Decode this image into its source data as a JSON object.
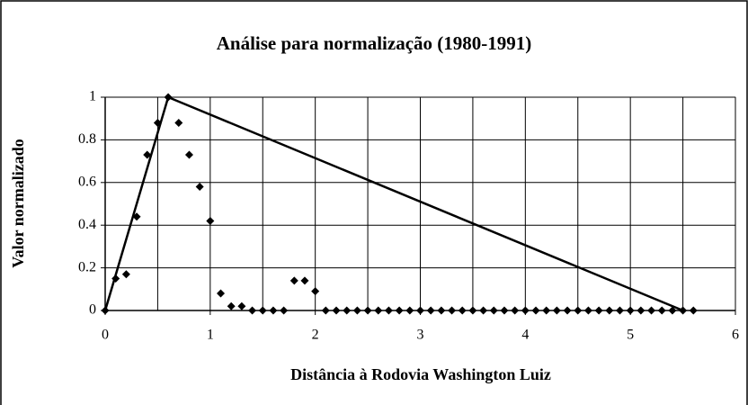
{
  "chart_data": {
    "type": "scatter",
    "title": "Análise para normalização (1980-1991)",
    "x_label": "Distância à Rodovia Washington Luiz",
    "y_label": "Valor normalizado",
    "xlim": [
      0,
      6
    ],
    "xticks": [
      0,
      1,
      2,
      3,
      4,
      5,
      6
    ],
    "ylim": [
      0,
      1
    ],
    "yticks": [
      0,
      0.2,
      0.4,
      0.6,
      0.8,
      1
    ],
    "grid": true,
    "series": [
      {
        "mode": "markers",
        "marker": "diamond",
        "color": "#000000",
        "x": [
          0,
          0.1,
          0.2,
          0.3,
          0.4,
          0.5,
          0.6,
          0.7,
          0.8,
          0.9,
          1.0,
          1.1,
          1.2,
          1.3,
          1.4,
          1.5,
          1.6,
          1.7,
          1.8,
          1.9,
          2.0,
          2.1,
          2.2,
          2.3,
          2.4,
          2.5,
          2.6,
          2.7,
          2.8,
          2.9,
          3.0,
          3.1,
          3.2,
          3.3,
          3.4,
          3.5,
          3.6,
          3.7,
          3.8,
          3.9,
          4.0,
          4.1,
          4.2,
          4.3,
          4.4,
          4.5,
          4.6,
          4.7,
          4.8,
          4.9,
          5.0,
          5.1,
          5.2,
          5.3,
          5.4,
          5.5,
          5.6
        ],
        "values": [
          0,
          0.15,
          0.17,
          0.44,
          0.73,
          0.88,
          1,
          0.88,
          0.73,
          0.58,
          0.42,
          0.08,
          0.02,
          0.02,
          0,
          0,
          0,
          0,
          0.14,
          0.14,
          0.09,
          0,
          0,
          0,
          0,
          0,
          0,
          0,
          0,
          0,
          0,
          0,
          0,
          0,
          0,
          0,
          0,
          0,
          0,
          0,
          0,
          0,
          0,
          0,
          0,
          0,
          0,
          0,
          0,
          0,
          0,
          0,
          0,
          0,
          0,
          0,
          0
        ]
      },
      {
        "mode": "lines",
        "color": "#000000",
        "x": [
          0,
          0.6,
          5.5
        ],
        "values": [
          0,
          1,
          0
        ]
      }
    ]
  }
}
